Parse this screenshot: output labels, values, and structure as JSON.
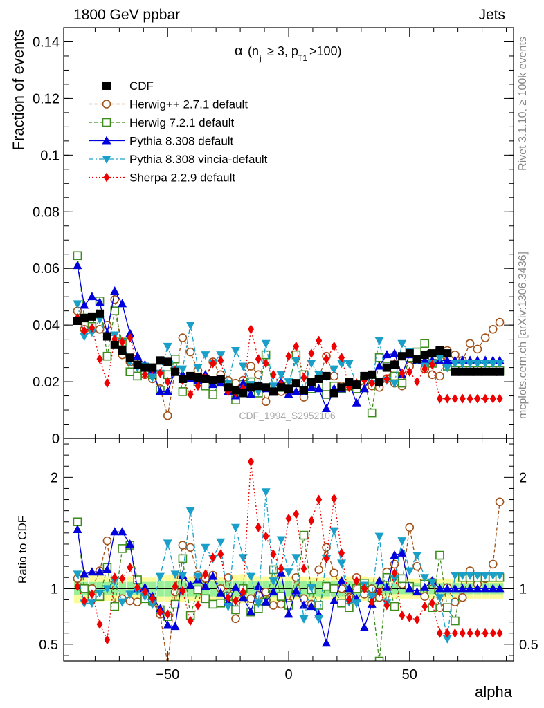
{
  "header": {
    "left": "1800 GeV ppbar",
    "right": "Jets",
    "side_rivet": "Rivet 3.1.10, ≥ 100k events",
    "side_mcplots": "mcplots.cern.ch [arXiv:1306.3436]",
    "watermark": "CDF_1994_S2952106"
  },
  "colors": {
    "CDF": "#000000",
    "Herwig++ 2.7.1 default": "#a0521a",
    "Herwig 7.2.1 default": "#3c8c1e",
    "Pythia 8.308 default": "#0000dd",
    "Pythia 8.308 vincia-default": "#1aa0c8",
    "Sherpa 2.2.9 default": "#ee0000",
    "band_inner": "#99f099",
    "band_outer": "#fbfb99"
  },
  "chart_data": [
    {
      "type": "line",
      "title": "",
      "xlabel": "",
      "ylabel": "Fraction of events",
      "annotation": {
        "alpha": "α",
        "open": "(n",
        "sub_j": "j",
        "geq": "≥ 3, p",
        "sub_T1": "T1",
        "close": ">100)"
      },
      "xlim": [
        -90,
        90
      ],
      "ylim": [
        0,
        0.145
      ],
      "yticks": [
        0,
        0.02,
        0.04,
        0.06,
        0.08,
        0.1,
        0.12,
        0.14
      ],
      "ytick_labels": [
        "0",
        "0.02",
        "0.04",
        "0.06",
        "0.08",
        "0.1",
        "0.12",
        "0.14"
      ],
      "legend_position": "top-left",
      "x": [
        -87.3,
        -84.5,
        -81.3,
        -78.1,
        -75.0,
        -71.9,
        -68.8,
        -65.6,
        -62.5,
        -59.4,
        -56.3,
        -53.1,
        -50.0,
        -46.9,
        -43.8,
        -40.6,
        -37.5,
        -34.4,
        -31.3,
        -28.1,
        -25.0,
        -21.9,
        -18.8,
        -15.6,
        -12.5,
        -9.4,
        -6.3,
        -3.1,
        0.0,
        3.1,
        6.3,
        9.4,
        12.5,
        15.6,
        18.8,
        21.9,
        25.0,
        28.1,
        31.3,
        34.4,
        37.5,
        40.6,
        43.8,
        46.9,
        50.0,
        53.1,
        56.3,
        59.4,
        62.5,
        65.6,
        68.8,
        71.9,
        75.0,
        78.1,
        81.3,
        84.5,
        87.3
      ],
      "series": [
        {
          "name": "CDF",
          "marker": "square-filled",
          "line": "none",
          "values": [
            0.0415,
            0.0425,
            0.043,
            0.044,
            0.036,
            0.033,
            0.031,
            0.0285,
            0.026,
            0.025,
            0.025,
            0.0275,
            0.027,
            0.0235,
            0.021,
            0.022,
            0.0215,
            0.021,
            0.0205,
            0.021,
            0.018,
            0.017,
            0.016,
            0.018,
            0.0185,
            0.018,
            0.0165,
            0.018,
            0.0175,
            0.0195,
            0.017,
            0.02,
            0.021,
            0.022,
            0.016,
            0.018,
            0.02,
            0.019,
            0.022,
            0.0225,
            0.02,
            0.025,
            0.026,
            0.029,
            0.03,
            0.028,
            0.0295,
            0.03,
            0.031,
            0.03,
            0.0235,
            0.0235,
            0.0235,
            0.0235,
            0.0235,
            0.0235,
            0.0235
          ]
        },
        {
          "name": "Herwig++ 2.7.1 default",
          "marker": "circle-open",
          "line": "dashed",
          "values": [
            0.045,
            0.0385,
            0.0385,
            0.0385,
            0.04,
            0.049,
            0.0295,
            0.027,
            0.024,
            0.0225,
            0.021,
            0.0175,
            0.008,
            0.024,
            0.0355,
            0.0305,
            0.024,
            0.0215,
            0.027,
            0.0225,
            0.0205,
            0.0195,
            0.0205,
            0.0255,
            0.0225,
            0.013,
            0.0175,
            0.0165,
            0.0165,
            0.0175,
            0.0145,
            0.018,
            0.0215,
            0.029,
            0.022,
            0.0185,
            0.019,
            0.0185,
            0.018,
            0.0185,
            0.018,
            0.021,
            0.0195,
            0.0185,
            0.0255,
            0.028,
            0.0245,
            0.0225,
            0.022,
            0.031,
            0.0295,
            0.0275,
            0.0335,
            0.0315,
            0.0355,
            0.0385,
            0.041
          ]
        },
        {
          "name": "Herwig 7.2.1 default",
          "marker": "square-open",
          "line": "dashed",
          "values": [
            0.0645,
            0.0425,
            0.0395,
            0.0485,
            0.029,
            0.045,
            0.034,
            0.0235,
            0.022,
            0.024,
            0.0225,
            0.017,
            0.0225,
            0.028,
            0.0165,
            0.0215,
            0.02,
            0.0185,
            0.0155,
            0.02,
            0.0185,
            0.0135,
            0.019,
            0.02,
            0.016,
            0.0295,
            0.018,
            0.018,
            0.0185,
            0.0295,
            0.0225,
            0.0175,
            0.0185,
            0.0155,
            0.0185,
            0.0175,
            0.0185,
            0.0175,
            0.0205,
            0.009,
            0.0285,
            0.0255,
            0.022,
            0.0195,
            0.0285,
            0.0305,
            0.0335,
            0.0265,
            0.0305,
            0.0255,
            0.024,
            0.024,
            0.024,
            0.024,
            0.024,
            0.024,
            0.024
          ]
        },
        {
          "name": "Pythia 8.308 default",
          "marker": "triangle-up-filled",
          "line": "solid",
          "values": [
            0.061,
            0.047,
            0.05,
            0.048,
            0.037,
            0.052,
            0.0475,
            0.037,
            0.029,
            0.026,
            0.024,
            0.0165,
            0.0165,
            0.024,
            0.0225,
            0.021,
            0.0205,
            0.0225,
            0.019,
            0.0195,
            0.0165,
            0.015,
            0.0195,
            0.0155,
            0.0185,
            0.0175,
            0.018,
            0.02,
            0.0155,
            0.0165,
            0.0165,
            0.018,
            0.0175,
            0.0105,
            0.0175,
            0.0175,
            0.0195,
            0.0125,
            0.0175,
            0.0225,
            0.0255,
            0.0295,
            0.03,
            0.0225,
            0.0295,
            0.0275,
            0.0275,
            0.0275,
            0.0275,
            0.0275,
            0.0275,
            0.0275,
            0.0275,
            0.0275,
            0.0275,
            0.0275,
            0.0275
          ]
        },
        {
          "name": "Pythia 8.308 vincia-default",
          "marker": "triangle-down-filled",
          "line": "dashdot",
          "values": [
            0.0475,
            0.036,
            0.0375,
            0.042,
            0.036,
            0.0365,
            0.034,
            0.027,
            0.025,
            0.0255,
            0.0215,
            0.023,
            0.0325,
            0.0245,
            0.0245,
            0.04,
            0.025,
            0.0295,
            0.0265,
            0.0295,
            0.0195,
            0.031,
            0.0255,
            0.019,
            0.0165,
            0.0335,
            0.0185,
            0.0225,
            0.02,
            0.0275,
            0.017,
            0.0265,
            0.0225,
            0.022,
            0.0245,
            0.0265,
            0.0265,
            0.019,
            0.022,
            0.0195,
            0.0345,
            0.0205,
            0.0195,
            0.0335,
            0.0305,
            0.0275,
            0.0255,
            0.0265,
            0.0285,
            0.025,
            0.0265,
            0.0265,
            0.0265,
            0.0265,
            0.0265,
            0.0265,
            0.0265
          ]
        },
        {
          "name": "Sherpa 2.2.9 default",
          "marker": "diamond-filled",
          "line": "dotted",
          "values": [
            0.0425,
            0.038,
            0.039,
            0.028,
            0.0195,
            0.035,
            0.034,
            0.0355,
            0.026,
            0.0225,
            0.0245,
            0.023,
            0.02,
            0.024,
            0.0205,
            0.0155,
            0.0185,
            0.0215,
            0.0265,
            0.0275,
            0.0165,
            0.016,
            0.0175,
            0.0385,
            0.028,
            0.0265,
            0.0225,
            0.019,
            0.029,
            0.0325,
            0.0215,
            0.03,
            0.0345,
            0.028,
            0.0325,
            0.0285,
            0.018,
            0.0195,
            0.0205,
            0.0195,
            0.0195,
            0.021,
            0.0265,
            0.023,
            0.0235,
            0.02,
            0.0245,
            0.026,
            0.014,
            0.014,
            0.014,
            0.014,
            0.014,
            0.014,
            0.014,
            0.014,
            0.014
          ]
        }
      ]
    },
    {
      "type": "line",
      "title": "",
      "xlabel": "alpha",
      "ylabel": "Ratio to CDF",
      "xlim": [
        -93,
        93
      ],
      "ylim": [
        0.35,
        2.35
      ],
      "xticks": [
        -50,
        0,
        50
      ],
      "xtick_labels": [
        "−50",
        "0",
        "50"
      ],
      "yticks": [
        0.5,
        1,
        2
      ],
      "ytick_labels": [
        "0.5",
        "1",
        "2"
      ],
      "reference_line": 1,
      "band_outer_halfwidth": [
        0.13,
        0.12,
        0.12,
        0.12,
        0.11,
        0.11,
        0.11,
        0.11,
        0.1,
        0.1,
        0.1,
        0.12,
        0.12,
        0.12,
        0.12,
        0.11,
        0.12,
        0.11,
        0.11,
        0.1,
        0.12,
        0.12,
        0.13,
        0.12,
        0.11,
        0.11,
        0.12,
        0.12,
        0.11,
        0.1,
        0.11,
        0.1,
        0.1,
        0.1,
        0.12,
        0.11,
        0.11,
        0.11,
        0.11,
        0.1,
        0.1,
        0.09,
        0.09,
        0.09,
        0.09,
        0.09,
        0.09,
        0.09,
        0.09,
        0.09,
        0.09,
        0.09,
        0.09,
        0.09,
        0.09,
        0.09,
        0.09
      ],
      "band_inner_halfwidth": [
        0.06,
        0.06,
        0.06,
        0.06,
        0.06,
        0.06,
        0.06,
        0.06,
        0.06,
        0.06,
        0.06,
        0.07,
        0.07,
        0.07,
        0.07,
        0.07,
        0.07,
        0.07,
        0.07,
        0.07,
        0.07,
        0.07,
        0.07,
        0.07,
        0.07,
        0.07,
        0.07,
        0.07,
        0.07,
        0.07,
        0.07,
        0.07,
        0.07,
        0.07,
        0.07,
        0.07,
        0.07,
        0.07,
        0.07,
        0.06,
        0.06,
        0.05,
        0.05,
        0.05,
        0.05,
        0.05,
        0.05,
        0.05,
        0.05,
        0.05,
        0.05,
        0.05,
        0.05,
        0.05,
        0.05,
        0.05,
        0.05
      ],
      "series": [
        {
          "name": "Herwig++ 2.7.1 default",
          "values": [
            1.09,
            1.0,
            1.0,
            1.16,
            1.43,
            0.85,
            0.91,
            0.89,
            0.88,
            0.92,
            0.88,
            0.77,
            0.31,
            0.97,
            1.39,
            1.37,
            1.12,
            1.09,
            1.12,
            1.0,
            1.1,
            0.73,
            0.98,
            0.91,
            0.94,
            0.97,
            0.85,
            0.86,
            0.87,
            1.1,
            0.91,
            0.86,
            1.17,
            1.37,
            1.14,
            1.0,
            0.92,
            1.1,
            0.95,
            1.0,
            0.92,
            1.15,
            1.22,
            1.04,
            1.55,
            1.2,
            0.93,
            1.06,
            0.83,
            1.01,
            0.88,
            0.92,
            1.16,
            1.04,
            1.09,
            1.22,
            1.78
          ]
        },
        {
          "name": "Herwig 7.2.1 default",
          "values": [
            1.6,
            1.0,
            0.93,
            0.93,
            1.19,
            0.84,
            1.36,
            1.39,
            1.08,
            0.91,
            0.89,
            0.81,
            0.75,
            0.86,
            1.27,
            0.76,
            0.99,
            0.91,
            0.86,
            0.87,
            0.93,
            0.81,
            1.0,
            0.79,
            0.82,
            0.88,
            1.17,
            0.93,
            0.85,
            0.97,
            1.48,
            0.99,
            0.85,
            1.02,
            1.0,
            0.87,
            0.83,
            1.0,
            1.05,
            0.92,
            0.35,
            1.1,
            0.84,
            1.09,
            1.02,
            0.99,
            1.04,
            0.83,
            1.3,
            0.83,
            0.71,
            1.1,
            1.1,
            1.1,
            1.1,
            1.1,
            1.1
          ]
        },
        {
          "name": "Pythia 8.308 default",
          "values": [
            1.53,
            1.13,
            1.15,
            1.15,
            1.17,
            1.51,
            1.51,
            1.4,
            1.0,
            1.01,
            0.93,
            0.82,
            0.67,
            0.66,
            1.12,
            1.03,
            1.08,
            1.02,
            1.11,
            0.96,
            0.88,
            1.01,
            0.92,
            0.79,
            1.02,
            0.88,
            0.97,
            1.14,
            0.77,
            0.98,
            0.85,
            0.84,
            0.77,
            0.51,
            0.89,
            1.07,
            1.0,
            0.91,
            0.65,
            0.86,
            1.07,
            1.01,
            1.3,
            1.32,
            1.0,
            0.97,
            1.01,
            1.07,
            1.0,
            1.0,
            1.0,
            1.0,
            1.0,
            1.0,
            1.0,
            1.0,
            1.0
          ]
        },
        {
          "name": "Pythia 8.308 vincia-default",
          "values": [
            1.13,
            0.87,
            0.87,
            0.96,
            1.0,
            1.07,
            0.88,
            0.95,
            0.98,
            0.93,
            0.86,
            1.11,
            1.41,
            1.13,
            1.12,
            1.7,
            1.11,
            1.37,
            1.27,
            1.42,
            0.84,
            1.55,
            1.28,
            1.11,
            0.87,
            1.87,
            1.07,
            1.44,
            1.15,
            1.28,
            0.73,
            1.01,
            0.73,
            1.27,
            1.52,
            1.23,
            0.88,
            0.87,
            1.03,
            0.93,
            1.47,
            0.87,
            1.09,
            1.43,
            1.16,
            1.3,
            1.1,
            1.06,
            0.92,
            0.55,
            1.12,
            1.12,
            1.12,
            1.12,
            1.12,
            1.12,
            1.12
          ]
        },
        {
          "name": "Sherpa 2.2.9 default",
          "values": [
            1.02,
            0.89,
            0.95,
            0.68,
            0.54,
            1.1,
            1.09,
            1.19,
            1.01,
            0.97,
            0.91,
            0.79,
            0.77,
            1.02,
            0.98,
            0.71,
            0.85,
            1.13,
            1.28,
            1.31,
            0.92,
            0.89,
            0.97,
            2.14,
            1.55,
            1.47,
            1.31,
            1.18,
            1.63,
            1.67,
            1.18,
            1.61,
            1.8,
            1.27,
            1.81,
            1.32,
            0.9,
            1.07,
            1.0,
            0.88,
            0.97,
            0.85,
            1.14,
            0.76,
            0.74,
            0.72,
            0.84,
            0.87,
            0.6,
            0.6,
            0.6,
            0.6,
            0.6,
            0.6,
            0.6,
            0.6,
            0.6
          ]
        }
      ]
    }
  ]
}
